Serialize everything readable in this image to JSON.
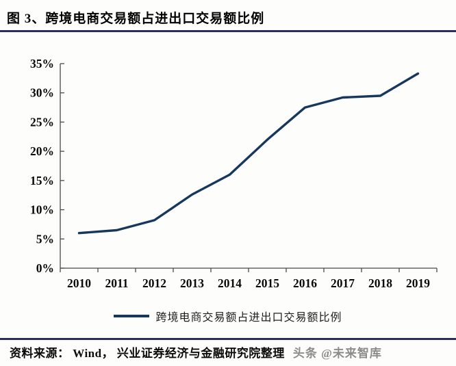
{
  "figure": {
    "title": "图 3、跨境电商交易额占进出口交易额比例",
    "source_label": "资料来源： Wind， 兴业证券经济与金融研究院整理",
    "watermark": "头条 @未来智库"
  },
  "chart_data": {
    "type": "line",
    "title": "图 3、跨境电商交易额占进出口交易额比例",
    "categories": [
      "2010",
      "2011",
      "2012",
      "2013",
      "2014",
      "2015",
      "2016",
      "2017",
      "2018",
      "2019"
    ],
    "series": [
      {
        "name": "跨境电商交易额占进出口交易额比例",
        "values": [
          6.0,
          6.5,
          8.2,
          12.6,
          16.0,
          22.0,
          27.5,
          29.2,
          29.5,
          33.3
        ]
      }
    ],
    "xlabel": "",
    "ylabel": "",
    "ylim": [
      0,
      35
    ],
    "y_tick_step": 5,
    "y_tick_labels": [
      "0%",
      "5%",
      "10%",
      "15%",
      "20%",
      "25%",
      "30%",
      "35%"
    ],
    "grid": false,
    "legend_position": "bottom",
    "line_color": "#17375d",
    "axis_color": "#4a4a4a",
    "tick_label_color": "#0a0a0a"
  }
}
